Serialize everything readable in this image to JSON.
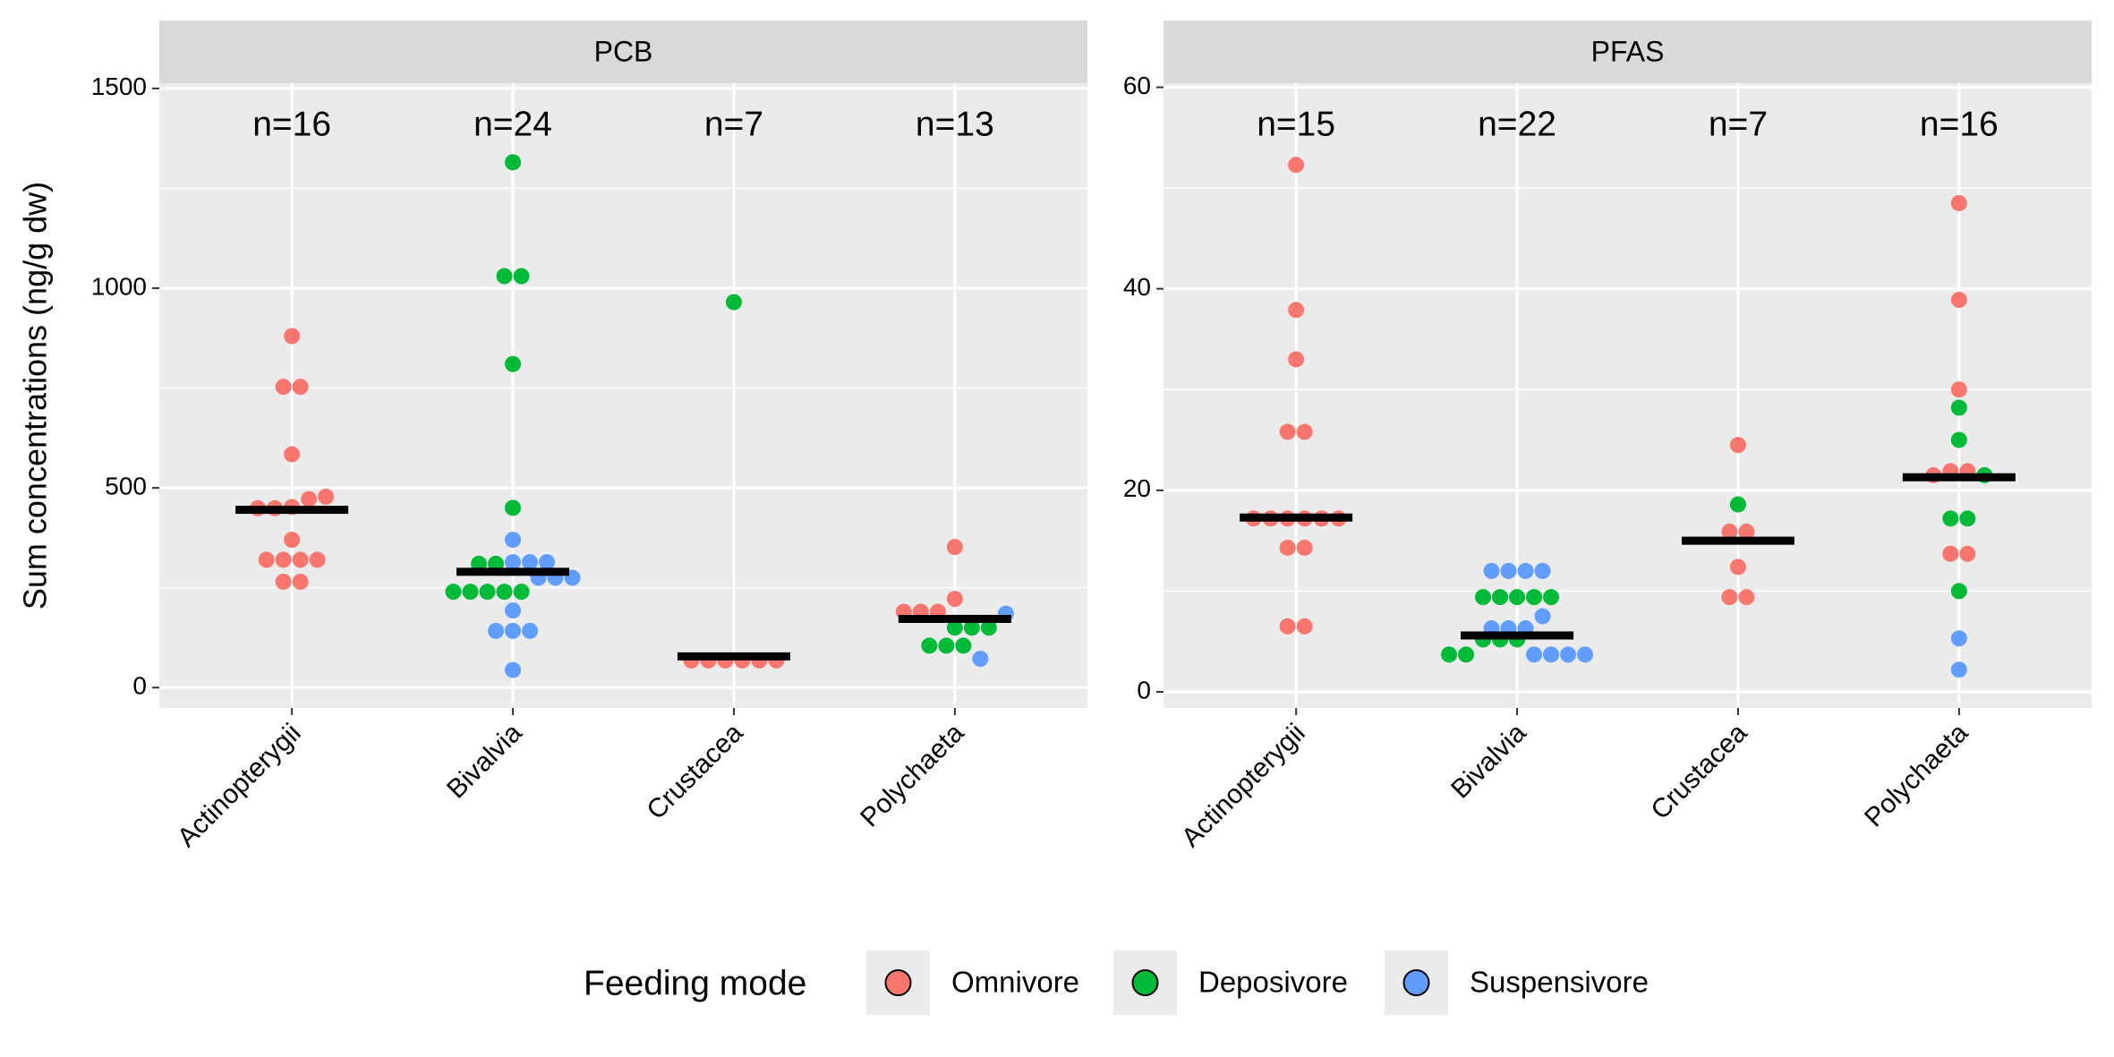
{
  "y_label": "Sum concentrations (ng/g dw)",
  "legend_title": "Feeding mode",
  "chart_data": [
    {
      "type": "dotplot",
      "title": "PCB",
      "categories": [
        "Actinopterygii",
        "Bivalvia",
        "Crustacea",
        "Polychaeta"
      ],
      "counts": [
        16,
        24,
        7,
        13
      ],
      "count_labels": [
        "n=16",
        "n=24",
        "n=7",
        "n=13"
      ],
      "medians": [
        445,
        290,
        78,
        172
      ],
      "ylim": [
        -51,
        1513
      ],
      "yticks": [
        0,
        500,
        1000,
        1500
      ],
      "grid": true,
      "series": [
        {
          "name": "Omnivore",
          "color": "#F8766D",
          "x": [
            "Actinopterygii",
            "Actinopterygii",
            "Actinopterygii",
            "Actinopterygii",
            "Actinopterygii",
            "Actinopterygii",
            "Actinopterygii",
            "Actinopterygii",
            "Actinopterygii",
            "Actinopterygii",
            "Actinopterygii",
            "Actinopterygii",
            "Actinopterygii",
            "Actinopterygii",
            "Actinopterygii",
            "Actinopterygii",
            "Crustacea",
            "Crustacea",
            "Crustacea",
            "Crustacea",
            "Crustacea",
            "Crustacea",
            "Polychaeta",
            "Polychaeta",
            "Polychaeta",
            "Polychaeta",
            "Polychaeta"
          ],
          "values": [
            880,
            753,
            753,
            584,
            478,
            472,
            452,
            449,
            449,
            370,
            320,
            320,
            320,
            320,
            265,
            265,
            68,
            68,
            68,
            68,
            68,
            68,
            352,
            222,
            190,
            190,
            190
          ]
        },
        {
          "name": "Deposivore",
          "color": "#00BA38",
          "x": [
            "Bivalvia",
            "Bivalvia",
            "Bivalvia",
            "Bivalvia",
            "Bivalvia",
            "Bivalvia",
            "Bivalvia",
            "Bivalvia",
            "Bivalvia",
            "Bivalvia",
            "Bivalvia",
            "Bivalvia",
            "Crustacea",
            "Polychaeta",
            "Polychaeta",
            "Polychaeta",
            "Polychaeta",
            "Polychaeta",
            "Polychaeta"
          ],
          "values": [
            1315,
            1030,
            1030,
            810,
            450,
            310,
            310,
            240,
            240,
            240,
            240,
            240,
            965,
            150,
            150,
            150,
            105,
            105,
            105
          ]
        },
        {
          "name": "Suspensivore",
          "color": "#619CFF",
          "x": [
            "Bivalvia",
            "Bivalvia",
            "Bivalvia",
            "Bivalvia",
            "Bivalvia",
            "Bivalvia",
            "Bivalvia",
            "Bivalvia",
            "Bivalvia",
            "Bivalvia",
            "Bivalvia",
            "Bivalvia",
            "Polychaeta",
            "Polychaeta"
          ],
          "values": [
            370,
            314,
            314,
            314,
            275,
            275,
            275,
            193,
            142,
            142,
            142,
            44,
            185,
            72
          ]
        }
      ]
    },
    {
      "type": "dotplot",
      "title": "PFAS",
      "categories": [
        "Actinopterygii",
        "Bivalvia",
        "Crustacea",
        "Polychaeta"
      ],
      "counts": [
        15,
        22,
        7,
        16
      ],
      "count_labels": [
        "n=15",
        "n=22",
        "n=7",
        "n=16"
      ],
      "medians": [
        17.3,
        5.6,
        15.0,
        21.3
      ],
      "ylim": [
        -1.6,
        60.4
      ],
      "yticks": [
        0,
        20,
        40,
        60
      ],
      "grid": true,
      "series": [
        {
          "name": "Omnivore",
          "color": "#F8766D",
          "x": [
            "Actinopterygii",
            "Actinopterygii",
            "Actinopterygii",
            "Actinopterygii",
            "Actinopterygii",
            "Actinopterygii",
            "Actinopterygii",
            "Actinopterygii",
            "Actinopterygii",
            "Actinopterygii",
            "Actinopterygii",
            "Actinopterygii",
            "Actinopterygii",
            "Actinopterygii",
            "Actinopterygii",
            "Crustacea",
            "Crustacea",
            "Crustacea",
            "Crustacea",
            "Crustacea",
            "Crustacea",
            "Polychaeta",
            "Polychaeta",
            "Polychaeta",
            "Polychaeta",
            "Polychaeta",
            "Polychaeta",
            "Polychaeta",
            "Polychaeta"
          ],
          "values": [
            52.3,
            37.9,
            33,
            25.8,
            25.8,
            17.2,
            17.2,
            17.2,
            17.2,
            17.2,
            17.2,
            14.3,
            14.3,
            6.5,
            6.5,
            24.5,
            15.9,
            15.9,
            12.4,
            9.4,
            9.4,
            48.5,
            38.9,
            30,
            21.9,
            21.9,
            21.5,
            13.7,
            13.7
          ]
        },
        {
          "name": "Deposivore",
          "color": "#00BA38",
          "x": [
            "Bivalvia",
            "Bivalvia",
            "Bivalvia",
            "Bivalvia",
            "Bivalvia",
            "Bivalvia",
            "Bivalvia",
            "Bivalvia",
            "Bivalvia",
            "Bivalvia",
            "Crustacea",
            "Polychaeta",
            "Polychaeta",
            "Polychaeta",
            "Polychaeta",
            "Polychaeta",
            "Polychaeta"
          ],
          "values": [
            9.4,
            9.4,
            9.4,
            9.4,
            9.4,
            5.2,
            5.2,
            5.2,
            3.7,
            3.7,
            18.6,
            28.2,
            25,
            21.5,
            17.2,
            17.2,
            10
          ]
        },
        {
          "name": "Suspensivore",
          "color": "#619CFF",
          "x": [
            "Bivalvia",
            "Bivalvia",
            "Bivalvia",
            "Bivalvia",
            "Bivalvia",
            "Bivalvia",
            "Bivalvia",
            "Bivalvia",
            "Bivalvia",
            "Bivalvia",
            "Bivalvia",
            "Bivalvia",
            "Polychaeta",
            "Polychaeta"
          ],
          "values": [
            12,
            12,
            12,
            12,
            7.5,
            6.3,
            6.3,
            6.3,
            3.7,
            3.7,
            3.7,
            3.7,
            5.3,
            2.2
          ]
        }
      ]
    }
  ]
}
